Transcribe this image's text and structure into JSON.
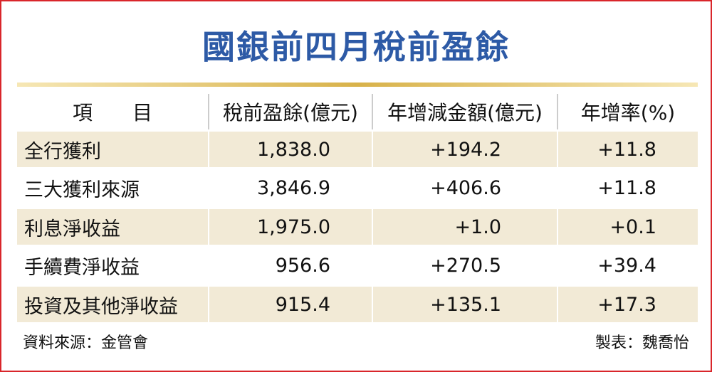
{
  "header": {
    "title": "國銀前四月稅前盈餘"
  },
  "table": {
    "columns": [
      "項　　目",
      "稅前盈餘(億元)",
      "年增減金額(億元)",
      "年增率(%)"
    ],
    "rows": [
      [
        "全行獲利",
        "1,838.0",
        "+194.2",
        "+11.8"
      ],
      [
        "三大獲利來源",
        "3,846.9",
        "+406.6",
        "+11.8"
      ],
      [
        "利息淨收益",
        "1,975.0",
        "+1.0",
        "+0.1"
      ],
      [
        "手續費淨收益",
        "956.6",
        "+270.5",
        "+39.4"
      ],
      [
        "投資及其他淨收益",
        "915.4",
        "+135.1",
        "+17.3"
      ]
    ]
  },
  "footer": {
    "source": "資料來源：金管會",
    "author": "製表：魏喬怡"
  }
}
